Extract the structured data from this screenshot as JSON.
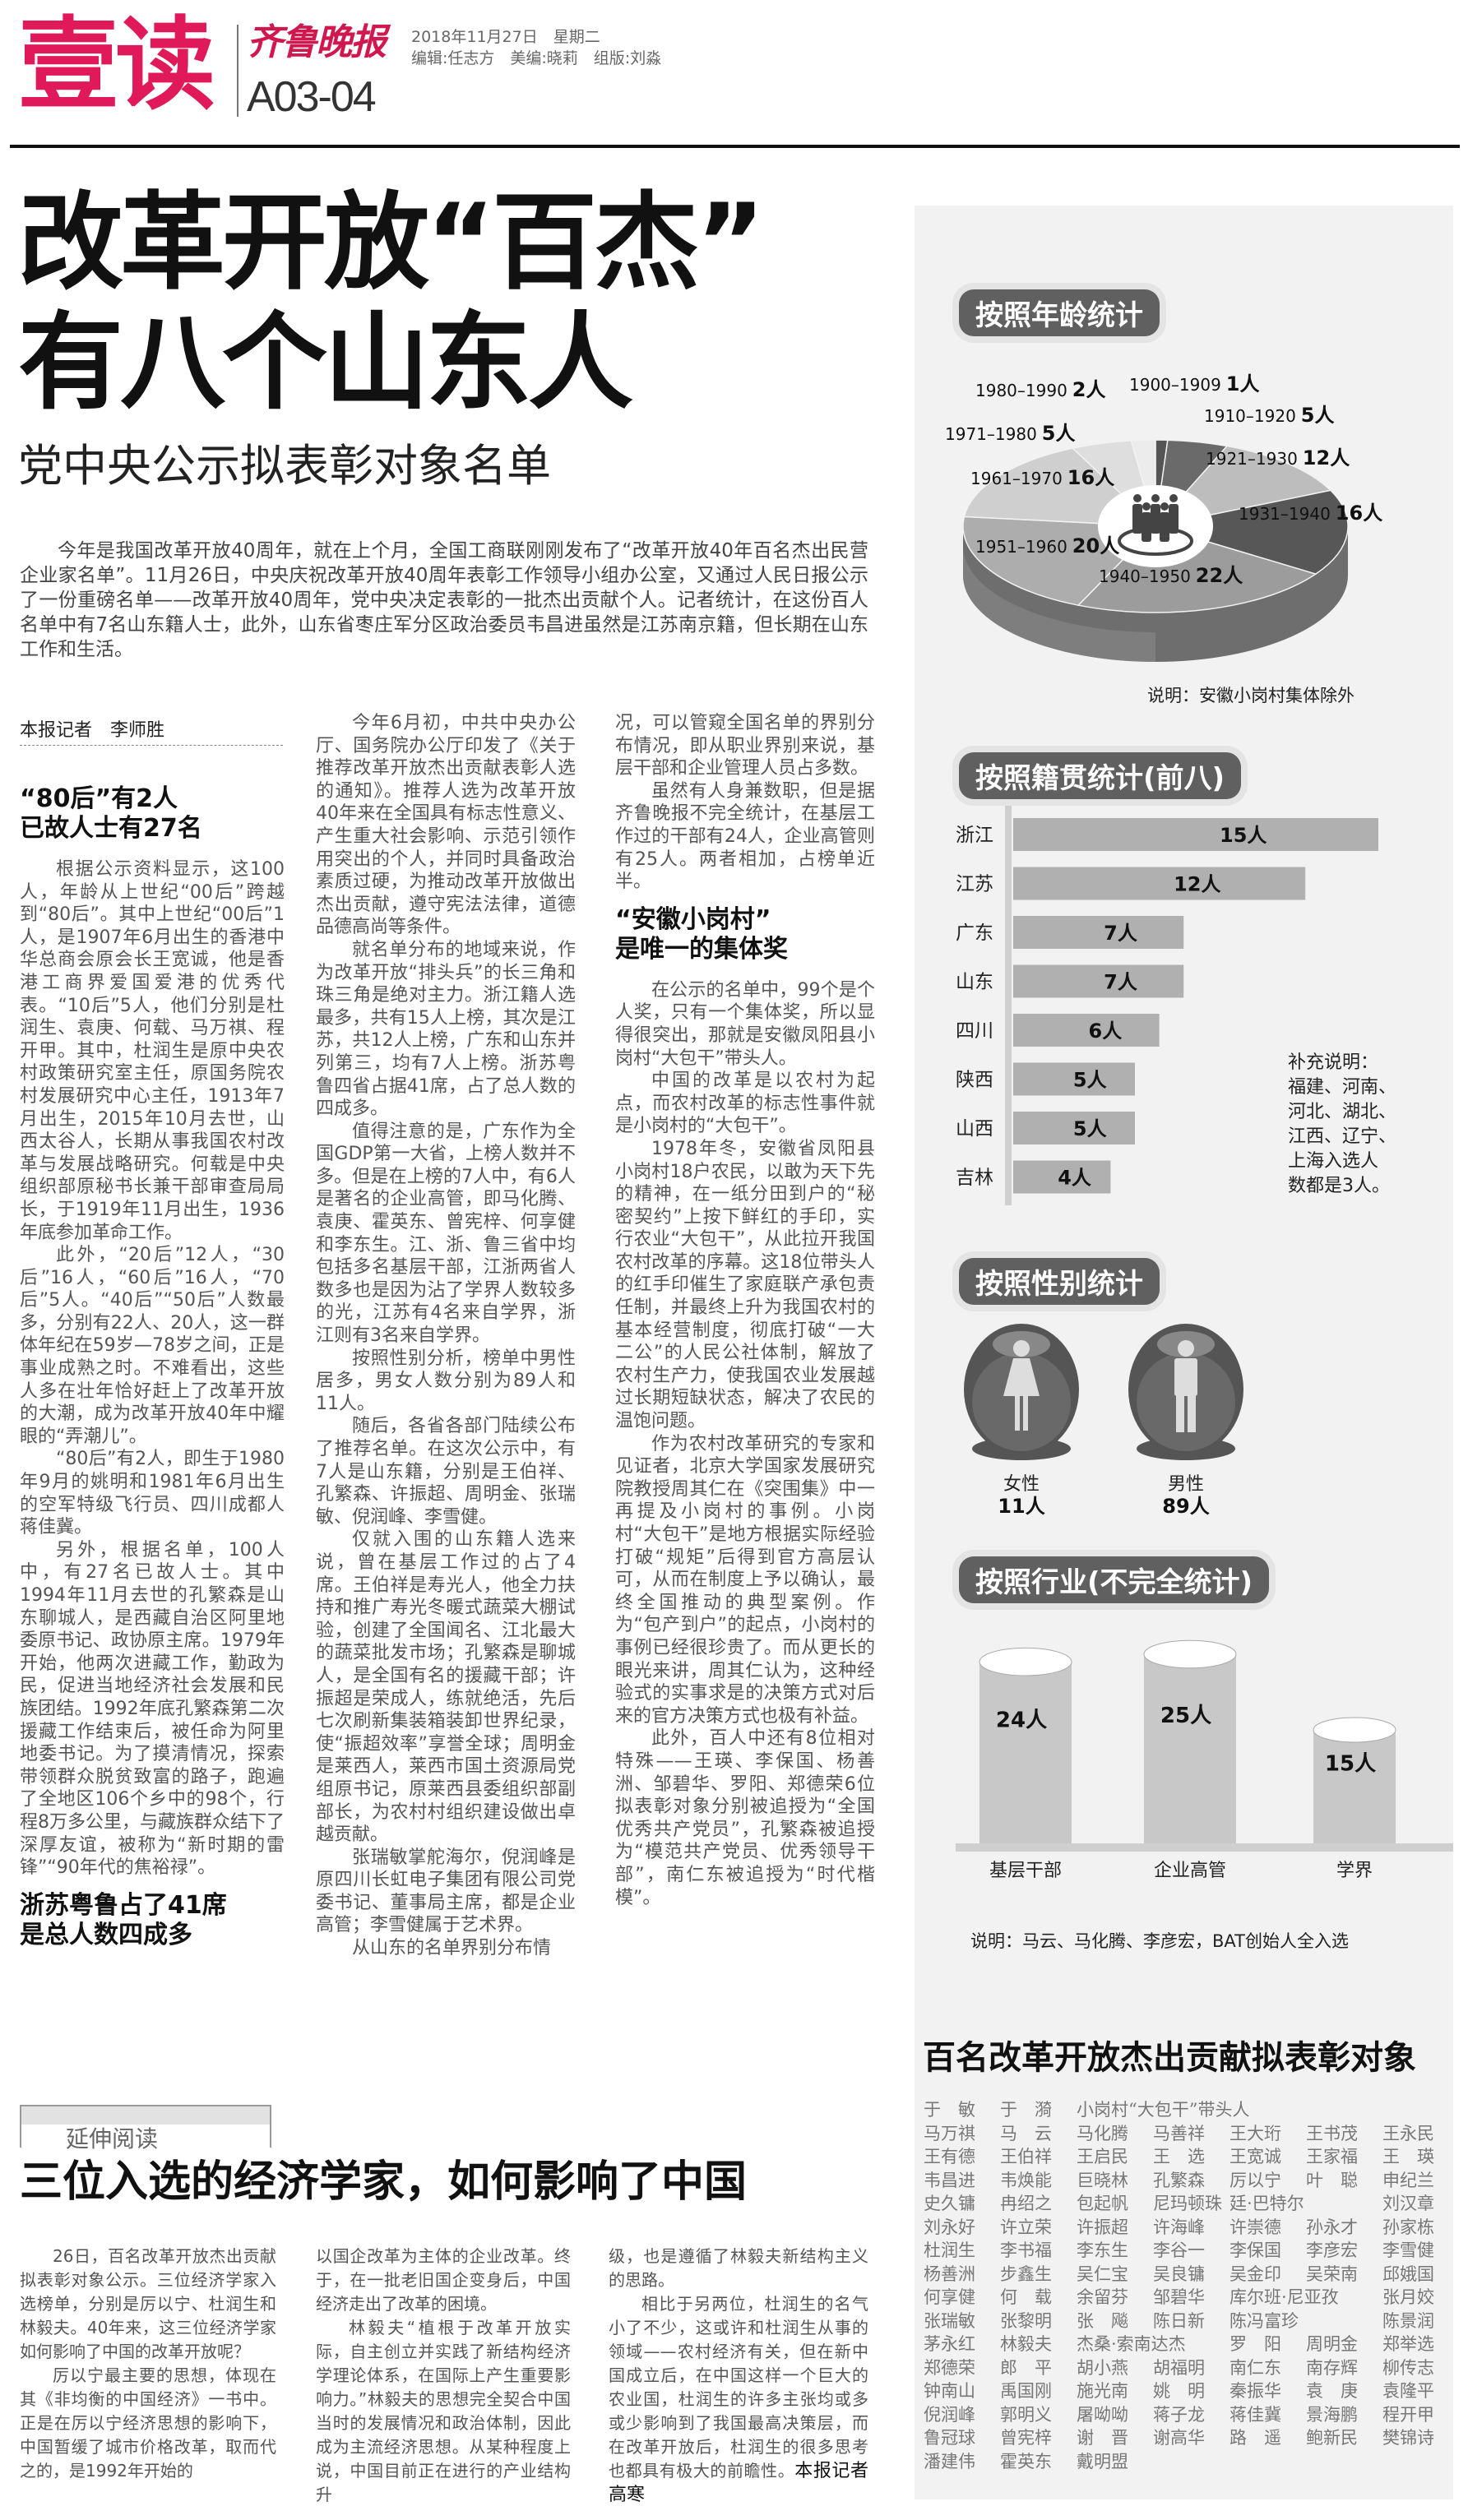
{
  "header": {
    "brand": "壹读",
    "logo": "齐鲁晚报",
    "date": "2018年11月27日　星期二",
    "editors": "编辑:任志方　美编:晓莉　组版:刘淼",
    "page": "A03-04"
  },
  "colors": {
    "brand": "#e0195a",
    "pill": "#606060",
    "panel": "#f2f2f2"
  },
  "headline": {
    "line1": "改革开放“百杰”",
    "line2": "有八个山东人",
    "subtitle": "党中央公示拟表彰对象名单"
  },
  "intro": "今年是我国改革开放40周年，就在上个月，全国工商联刚刚发布了“改革开放40年百名杰出民营企业家名单”。11月26日，中央庆祝改革开放40周年表彰工作领导小组办公室，又通过人民日报公示了一份重磅名单——改革开放40周年，党中央决定表彰的一批杰出贡献个人。记者统计，在这份百人名单中有7名山东籍人士，此外，山东省枣庄军分区政治委员韦昌进虽然是江苏南京籍，但长期在山东工作和生活。",
  "byline": "本报记者　李师胜",
  "columns": [
    [
      {
        "h": [
          "“80后”有2人",
          "已故人士有27名"
        ]
      },
      {
        "p": "根据公示资料显示，这100人，年龄从上世纪“00后”跨越到“80后”。其中上世纪“00后”1人，是1907年6月出生的香港中华总商会原会长王宽诚，他是香港工商界爱国爱港的优秀代表。“10后”5人，他们分别是杜润生、袁庚、何载、马万祺、程开甲。其中，杜润生是原中央农村政策研究室主任，原国务院农村发展研究中心主任，1913年7月出生，2015年10月去世，山西太谷人，长期从事我国农村改革与发展战略研究。何载是中央组织部原秘书长兼干部审查局局长，于1919年11月出生，1936年底参加革命工作。"
      },
      {
        "p": "此外，“20后”12人，“30后”16人，“60后”16人，“70后”5人。“40后”“50后”人数最多，分别有22人、20人，这一群体年纪在59岁—78岁之间，正是事业成熟之时。不难看出，这些人多在壮年恰好赶上了改革开放的大潮，成为改革开放40年中耀眼的“弄潮儿”。"
      },
      {
        "p": "“80后”有2人，即生于1980年9月的姚明和1981年6月出生的空军特级飞行员、四川成都人蒋佳冀。"
      },
      {
        "p": "另外，根据名单，100人中，有27名已故人士。其中1994年11月去世的孔繁森是山东聊城人，是西藏自治区阿里地委原书记、政协原主席。1979年开始，他两次进藏工作，勤政为民，促进当地经济社会发展和民族团结。1992年底孔繁森第二次援藏工作结束后，被任命为阿里地委书记。为了摸清情况，探索带领群众脱贫致富的路子，跑遍了全地区106个乡中的98个，行程8万多公里，与藏族群众结下了深厚友谊，被称为“新时期的雷锋”“90年代的焦裕禄”。"
      },
      {
        "h": [
          "浙苏粤鲁占了41席",
          "是总人数四成多"
        ]
      }
    ],
    [
      {
        "p": "今年6月初，中共中央办公厅、国务院办公厅印发了《关于推荐改革开放杰出贡献表彰人选的通知》。推荐人选为改革开放40年来在全国具有标志性意义、产生重大社会影响、示范引领作用突出的个人，并同时具备政治素质过硬，为推动改革开放做出杰出贡献，遵守宪法法律，道德品德高尚等条件。"
      },
      {
        "p": "就名单分布的地域来说，作为改革开放“排头兵”的长三角和珠三角是绝对主力。浙江籍人选最多，共有15人上榜，其次是江苏，共12人上榜，广东和山东并列第三，均有7人上榜。浙苏粤鲁四省占据41席，占了总人数的四成多。"
      },
      {
        "p": "值得注意的是，广东作为全国GDP第一大省，上榜人数并不多。但是在上榜的7人中，有6人是著名的企业高管，即马化腾、袁庚、霍英东、曾宪梓、何享健和李东生。江、浙、鲁三省中均包括多名基层干部，江浙两省人数多也是因为沾了学界人数较多的光，江苏有4名来自学界，浙江则有3名来自学界。"
      },
      {
        "p": "按照性别分析，榜单中男性居多，男女人数分别为89人和11人。"
      },
      {
        "p": "随后，各省各部门陆续公布了推荐名单。在这次公示中，有7人是山东籍，分别是王伯祥、孔繁森、许振超、周明金、张瑞敏、倪润峰、李雪健。"
      },
      {
        "p": "仅就入围的山东籍人选来说，曾在基层工作过的占了4席。王伯祥是寿光人，他全力扶持和推广寿光冬暖式蔬菜大棚试验，创建了全国闻名、江北最大的蔬菜批发市场；孔繁森是聊城人，是全国有名的援藏干部；许振超是荣成人，练就绝活，先后七次刷新集装箱装卸世界纪录，使“振超效率”享誉全球；周明金是莱西人，莱西市国土资源局党组原书记，原莱西县委组织部副部长，为农村村组织建设做出卓越贡献。"
      },
      {
        "p": "张瑞敏掌舵海尔，倪润峰是原四川长虹电子集团有限公司党委书记、董事局主席，都是企业高管；李雪健属于艺术界。"
      },
      {
        "p": "从山东的名单界别分布情"
      }
    ],
    [
      {
        "c": "况，可以管窥全国名单的界别分布情况，即从职业界别来说，基层干部和企业管理人员占多数。"
      },
      {
        "p": "虽然有人身兼数职，但是据齐鲁晚报不完全统计，在基层工作过的干部有24人，企业高管则有25人。两者相加，占榜单近半。"
      },
      {
        "h": [
          "“安徽小岗村”",
          "是唯一的集体奖"
        ]
      },
      {
        "p": "在公示的名单中，99个是个人奖，只有一个集体奖，所以显得很突出，那就是安徽凤阳县小岗村“大包干”带头人。"
      },
      {
        "p": "中国的改革是以农村为起点，而农村改革的标志性事件就是小岗村的“大包干”。"
      },
      {
        "p": "1978年冬，安徽省凤阳县小岗村18户农民，以敢为天下先的精神，在一纸分田到户的“秘密契约”上按下鲜红的手印，实行农业“大包干”，从此拉开我国农村改革的序幕。这18位带头人的红手印催生了家庭联产承包责任制，并最终上升为我国农村的基本经营制度，彻底打破“一大二公”的人民公社体制，解放了农村生产力，使我国农业发展越过长期短缺状态，解决了农民的温饱问题。"
      },
      {
        "p": "作为农村改革研究的专家和见证者，北京大学国家发展研究院教授周其仁在《突围集》中一再提及小岗村的事例。小岗村“大包干”是地方根据实际经验打破“规矩”后得到官方高层认可，从而在制度上予以确认，最终全国推动的典型案例。作为“包产到户”的起点，小岗村的事例已经很珍贵了。而从更长的眼光来讲，周其仁认为，这种经验式的实事求是的决策方式对后来的官方决策方式也极有补益。"
      },
      {
        "p": "此外，百人中还有8位相对特殊——王瑛、李保国、杨善洲、邹碧华、罗阳、郑德荣6位拟表彰对象分别被追授为“全国优秀共产党员”，孔繁森被追授为“模范共产党员、优秀领导干部”，南仁东被追授为“时代楷模”。"
      }
    ]
  ],
  "extended": {
    "label": "延伸阅读",
    "title": "三位入选的经济学家，如何影响了中国",
    "columns": [
      [
        {
          "p": "26日，百名改革开放杰出贡献拟表彰对象公示。三位经济学家入选榜单，分别是厉以宁、杜润生和林毅夫。40年来，这三位经济学家如何影响了中国的改革开放呢？"
        },
        {
          "p": "厉以宁最主要的思想，体现在其《非均衡的中国经济》一书中。正是在厉以宁经济思想的影响下，中国暂缓了城市价格改革，取而代之的，是1992年开始的"
        }
      ],
      [
        {
          "c": "以国企改革为主体的企业改革。终于，在一批老旧国企变身后，中国经济走出了改革的困境。"
        },
        {
          "p": "林毅夫“植根于改革开放实际，自主创立并实践了新结构经济学理论体系，在国际上产生重要影响力。”林毅夫的思想完全契合中国当时的发展情况和政治体制，因此成为主流经济思想。从某种程度上说，中国目前正在进行的产业结构升"
        }
      ],
      [
        {
          "c": "级，也是遵循了林毅夫新结构主义的思路。"
        },
        {
          "p": "相比于另两位，杜润生的名气小了不少，这或许和杜润生从事的领域——农村经济有关，但在新中国成立后，在中国这样一个巨大的农业国，杜润生的许多主张均或多或少影响到了我国最高决策层，而在改革开放后，杜润生的很多思考也都具有极大的前瞻性。"
        }
      ]
    ],
    "reporter": "本报记者　高寒"
  },
  "chart_data": [
    {
      "type": "pie",
      "title": "按照年龄统计",
      "unit": "人",
      "note": "说明：安徽小岗村集体除外",
      "categories": [
        "1900–1909",
        "1910–1920",
        "1921–1930",
        "1931–1940",
        "1940–1950",
        "1951–1960",
        "1961–1970",
        "1971–1980",
        "1980–1990"
      ],
      "values": [
        1,
        5,
        12,
        16,
        22,
        20,
        16,
        5,
        2
      ],
      "shades": [
        "#555555",
        "#6a6a6a",
        "#bdbdbd",
        "#575757",
        "#9c9c9c",
        "#adadad",
        "#cfcfcf",
        "#dedede",
        "#ececec"
      ],
      "center_icon": "group-people-icon"
    },
    {
      "type": "bar",
      "orientation": "horizontal",
      "title": "按照籍贯统计(前八)",
      "unit": "人",
      "categories": [
        "浙江",
        "江苏",
        "广东",
        "山东",
        "四川",
        "陕西",
        "山西",
        "吉林"
      ],
      "values": [
        15,
        12,
        7,
        7,
        6,
        5,
        5,
        4
      ],
      "bar_color": "#b0b0b0",
      "note": [
        "补充说明：",
        "福建、河南、",
        "河北、湖北、",
        "江西、辽宁、",
        "上海入选人",
        "数都是3人。"
      ]
    },
    {
      "type": "pictogram",
      "title": "按照性别统计",
      "unit": "人",
      "categories": [
        "女性",
        "男性"
      ],
      "values": [
        11,
        89
      ],
      "icons": [
        "female-icon",
        "male-icon"
      ]
    },
    {
      "type": "bar",
      "style": "cylinder",
      "title": "按照行业(不完全统计)",
      "unit": "人",
      "categories": [
        "基层干部",
        "企业高管",
        "学界"
      ],
      "values": [
        24,
        25,
        15
      ],
      "bar_color": "#c8c8c8",
      "note": "说明：马云、马化腾、李彦宏，BAT创始人全入选"
    }
  ],
  "names": {
    "title": "百名改革开放杰出贡献拟表彰对象",
    "rows": [
      [
        "于　敏",
        "于　漪",
        "小岗村“大包干”带头人"
      ],
      [
        "马万祺",
        "马　云",
        "马化腾",
        "马善祥",
        "王大珩",
        "王书茂",
        "王永民"
      ],
      [
        "王有德",
        "王伯祥",
        "王启民",
        "王　选",
        "王宽诚",
        "王家福",
        "王　瑛"
      ],
      [
        "韦昌进",
        "韦焕能",
        "巨晓林",
        "孔繁森",
        "厉以宁",
        "叶　聪",
        "申纪兰"
      ],
      [
        "史久镛",
        "冉绍之",
        "包起帆",
        "尼玛顿珠",
        "廷·巴特尔",
        "刘汉章"
      ],
      [
        "刘永好",
        "许立荣",
        "许振超",
        "许海峰",
        "许崇德",
        "孙永才",
        "孙家栋"
      ],
      [
        "杜润生",
        "李书福",
        "李东生",
        "李谷一",
        "李保国",
        "李彦宏",
        "李雪健"
      ],
      [
        "杨善洲",
        "步鑫生",
        "吴仁宝",
        "吴良镛",
        "吴金印",
        "吴荣南",
        "邱娥国"
      ],
      [
        "何享健",
        "何　载",
        "余留芬",
        "邹碧华",
        "库尔班·尼亚孜",
        "张月姣"
      ],
      [
        "张瑞敏",
        "张黎明",
        "张　飚",
        "陈日新",
        "陈冯富珍",
        "",
        "陈景润"
      ],
      [
        "茅永红",
        "林毅夫",
        "杰桑·索南达杰",
        "罗　阳",
        "周明金",
        "郑举选"
      ],
      [
        "郑德荣",
        "郎　平",
        "胡小燕",
        "胡福明",
        "南仁东",
        "南存辉",
        "柳传志"
      ],
      [
        "钟南山",
        "禹国刚",
        "施光南",
        "姚　明",
        "秦振华",
        "袁　庚",
        "袁隆平"
      ],
      [
        "倪润峰",
        "郭明义",
        "屠呦呦",
        "蒋子龙",
        "蒋佳冀",
        "景海鹏",
        "程开甲"
      ],
      [
        "鲁冠球",
        "曾宪梓",
        "谢　晋",
        "谢高华",
        "路　遥",
        "鲍新民",
        "樊锦诗"
      ],
      [
        "潘建伟",
        "霍英东",
        "戴明盟"
      ]
    ]
  }
}
